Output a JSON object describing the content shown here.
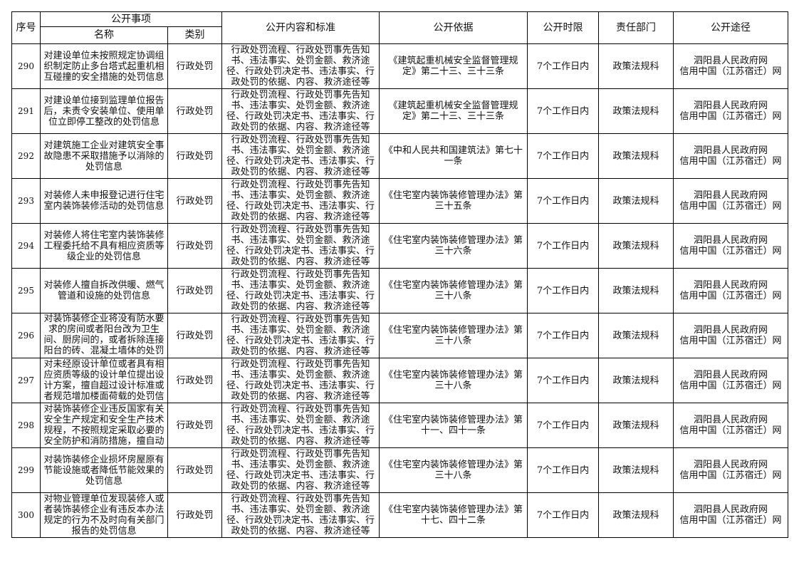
{
  "header": {
    "seq": "序号",
    "matter": "公开事项",
    "name": "名称",
    "category": "类别",
    "content": "公开内容和标准",
    "basis": "公开依据",
    "time_limit": "公开时限",
    "department": "责任部门",
    "channel": "公开途径"
  },
  "rows": [
    {
      "seq": "290",
      "name": "对建设单位未按照规定协调组织制定防止多台塔式起重机相互碰撞的安全措施的处罚信息",
      "category": "行政处罚",
      "content": "行政处罚流程、行政处罚事先告知书、违法事实、处罚金额、救济途径、行政处罚决定书、违法事实、行政处罚的依据、内容、救济途径等",
      "basis": "《建筑起重机械安全监督管理规定》第二十三、三十三条",
      "time_limit": "7个工作日内",
      "department": "政策法规科",
      "channel1": "泗阳县人民政府网",
      "channel2": "信用中国（江苏宿迁）网"
    },
    {
      "seq": "291",
      "name": "对建设单位接到监理单位报告后，未责令安装单位、使用单位立即停工整改的处罚信息",
      "category": "行政处罚",
      "content": "行政处罚流程、行政处罚事先告知书、违法事实、处罚金额、救济途径、行政处罚决定书、违法事实、行政处罚的依据、内容、救济途径等",
      "basis": "《建筑起重机械安全监督管理规定》第二十三、三十三条",
      "time_limit": "7个工作日内",
      "department": "政策法规科",
      "channel1": "泗阳县人民政府网",
      "channel2": "信用中国（江苏宿迁）网"
    },
    {
      "seq": "292",
      "name": "对建筑施工企业对建筑安全事故隐患不采取措施予以消除的处罚信息",
      "category": "行政处罚",
      "content": "行政处罚流程、行政处罚事先告知书、违法事实、处罚金额、救济途径、行政处罚决定书、违法事实、行政处罚的依据、内容、救济途径等",
      "basis": "《中和人民共和国建筑法》第七十一条",
      "time_limit": "7个工作日内",
      "department": "政策法规科",
      "channel1": "泗阳县人民政府网",
      "channel2": "信用中国（江苏宿迁）网"
    },
    {
      "seq": "293",
      "name": "对装修人未申报登记进行住宅室内装饰装修活动的处罚信息",
      "category": "行政处罚",
      "content": "行政处罚流程、行政处罚事先告知书、违法事实、处罚金额、救济途径、行政处罚决定书、违法事实、行政处罚的依据、内容、救济途径等",
      "basis": "《住宅室内装饰装修管理办法》第三十五条",
      "time_limit": "7个工作日内",
      "department": "政策法规科",
      "channel1": "泗阳县人民政府网",
      "channel2": "信用中国（江苏宿迁）网"
    },
    {
      "seq": "294",
      "name": "对装修人将住宅室内装饰装修工程委托给不具有相应资质等级企业的处罚信息",
      "category": "行政处罚",
      "content": "行政处罚流程、行政处罚事先告知书、违法事实、处罚金额、救济途径、行政处罚决定书、违法事实、行政处罚的依据、内容、救济途径等",
      "basis": "《住宅室内装饰装修管理办法》第三十六条",
      "time_limit": "7个工作日内",
      "department": "政策法规科",
      "channel1": "泗阳县人民政府网",
      "channel2": "信用中国（江苏宿迁）网"
    },
    {
      "seq": "295",
      "name": "对装修人擅自拆改供暖、燃气管道和设施的处罚信息",
      "category": "行政处罚",
      "content": "行政处罚流程、行政处罚事先告知书、违法事实、处罚金额、救济途径、行政处罚决定书、违法事实、行政处罚的依据、内容、救济途径等",
      "basis": "《住宅室内装饰装修管理办法》第三十八条",
      "time_limit": "7个工作日内",
      "department": "政策法规科",
      "channel1": "泗阳县人民政府网",
      "channel2": "信用中国（江苏宿迁）网"
    },
    {
      "seq": "296",
      "name": "对装饰装修企业将没有防水要求的房间或者阳台改为卫生间、厨房间的，或者拆除连接阳台的砖、混凝土墙体的处罚信",
      "category": "行政处罚",
      "content": "行政处罚流程、行政处罚事先告知书、违法事实、处罚金额、救济途径、行政处罚决定书、违法事实、行政处罚的依据、内容、救济途径等",
      "basis": "《住宅室内装饰装修管理办法》第三十八条",
      "time_limit": "7个工作日内",
      "department": "政策法规科",
      "channel1": "泗阳县人民政府网",
      "channel2": "信用中国（江苏宿迁）网"
    },
    {
      "seq": "297",
      "name": "对未经原设计单位或者具有相应资质等级的设计单位提出设计方案，擅自超过设计标准或者规范增加楼面荷载的处罚信",
      "category": "行政处罚",
      "content": "行政处罚流程、行政处罚事先告知书、违法事实、处罚金额、救济途径、行政处罚决定书、违法事实、行政处罚的依据、内容、救济途径等",
      "basis": "《住宅室内装饰装修管理办法》第三十八条",
      "time_limit": "7个工作日内",
      "department": "政策法规科",
      "channel1": "泗阳县人民政府网",
      "channel2": "信用中国（江苏宿迁）网"
    },
    {
      "seq": "298",
      "name": "对装饰装修企业违反国家有关安全生产规定和安全生产技术规程，不按照规定采取必要的安全防护和消防措施，擅自动",
      "category": "行政处罚",
      "content": "行政处罚流程、行政处罚事先告知书、违法事实、处罚金额、救济途径、行政处罚决定书、违法事实、行政处罚的依据、内容、救济途径等",
      "basis": "《住宅室内装饰装修管理办法》第十一、四十一条",
      "time_limit": "7个工作日内",
      "department": "政策法规科",
      "channel1": "泗阳县人民政府网",
      "channel2": "信用中国（江苏宿迁）网"
    },
    {
      "seq": "299",
      "name": "对装饰装修企业损坏房屋原有节能设施或者降低节能效果的处罚信息",
      "category": "行政处罚",
      "content": "行政处罚流程、行政处罚事先告知书、违法事实、处罚金额、救济途径、行政处罚决定书、违法事实、行政处罚的依据、内容、救济途径等",
      "basis": "《住宅室内装饰装修管理办法》第三十八条",
      "time_limit": "7个工作日内",
      "department": "政策法规科",
      "channel1": "泗阳县人民政府网",
      "channel2": "信用中国（江苏宿迁）网"
    },
    {
      "seq": "300",
      "name": "对物业管理单位发现装修人或者装饰装修企业有违反本办法规定的行为不及时向有关部门报告的处罚信息",
      "category": "行政处罚",
      "content": "行政处罚流程、行政处罚事先告知书、违法事实、处罚金额、救济途径、行政处罚决定书、违法事实、行政处罚的依据、内容、救济途径等",
      "basis": "《住宅室内装饰装修管理办法》第十七、四十二条",
      "time_limit": "7个工作日内",
      "department": "政策法规科",
      "channel1": "泗阳县人民政府网",
      "channel2": "信用中国（江苏宿迁）网"
    }
  ]
}
